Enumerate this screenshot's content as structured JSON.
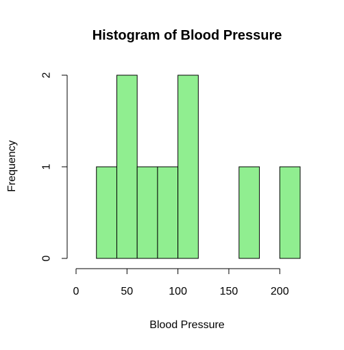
{
  "chart_data": {
    "type": "bar",
    "title": "Histogram of Blood Pressure",
    "xlabel": "Blood Pressure",
    "ylabel": "Frequency",
    "bin_edges": [
      20,
      40,
      60,
      80,
      100,
      120,
      140,
      160,
      180,
      200,
      220
    ],
    "values": [
      1,
      2,
      1,
      1,
      2,
      0,
      0,
      1,
      0,
      1
    ],
    "xlim": [
      0,
      220
    ],
    "ylim": [
      0,
      2
    ],
    "x_ticks": [
      0,
      50,
      100,
      150,
      200
    ],
    "y_ticks": [
      0,
      1,
      2
    ],
    "bar_color": "#90EE90",
    "grid": false
  }
}
